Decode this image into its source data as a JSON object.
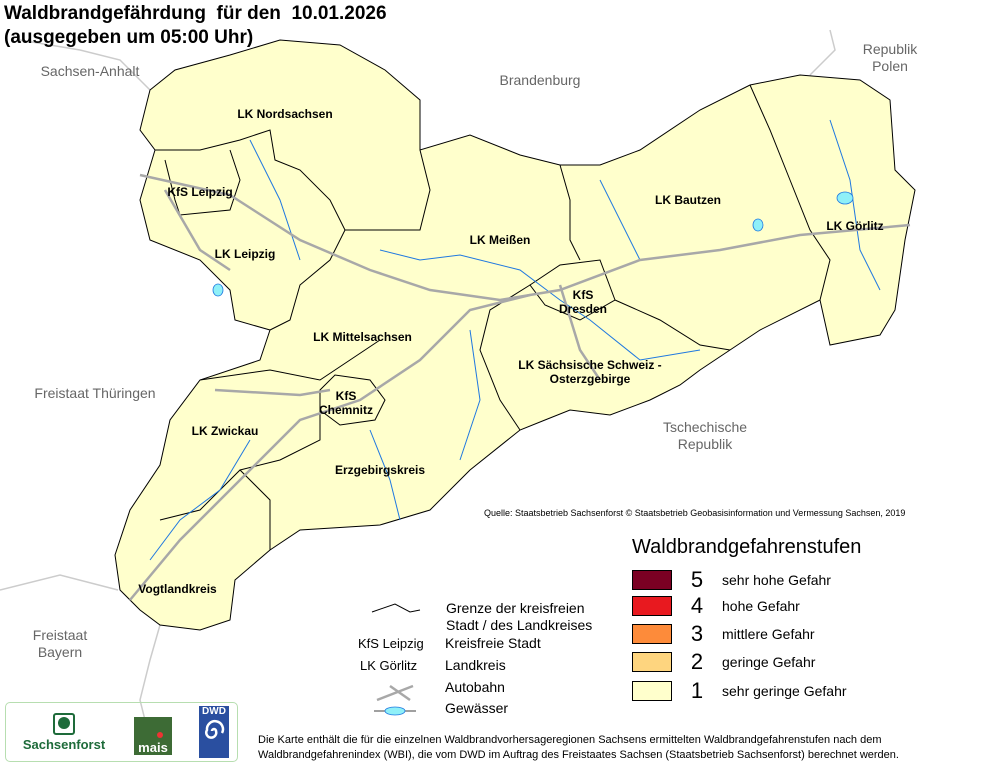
{
  "title": "Waldbrandgefährdung  für den  10.01.2026\n(ausgegeben um 05:00 Uhr)",
  "countries": [
    {
      "name": "Sachsen-Anhalt"
    },
    {
      "name": "Brandenburg"
    },
    {
      "name": "Republik\nPolen"
    },
    {
      "name": "Freistaat Thüringen"
    },
    {
      "name": "Tschechische\nRepublik"
    },
    {
      "name": "Freistaat\nBayern"
    }
  ],
  "districts": [
    {
      "name": "LK Nordsachsen",
      "level": 1
    },
    {
      "name": "KfS Leipzig",
      "level": 1
    },
    {
      "name": "LK Leipzig",
      "level": 1
    },
    {
      "name": "LK Meißen",
      "level": 1
    },
    {
      "name": "LK Bautzen",
      "level": 1
    },
    {
      "name": "LK Görlitz",
      "level": 1
    },
    {
      "name": "KfS\nDresden",
      "level": 1
    },
    {
      "name": "LK Mittelsachsen",
      "level": 1
    },
    {
      "name": "LK Sächsische Schweiz -\nOsterzgebirge",
      "level": 1
    },
    {
      "name": "KfS\nChemnitz",
      "level": 1
    },
    {
      "name": "LK Zwickau",
      "level": 1
    },
    {
      "name": "Erzgebirgskreis",
      "level": 1
    },
    {
      "name": "Vogtlandkreis",
      "level": 1
    }
  ],
  "source": "Quelle: Staatsbetrieb Sachsenforst  © Staatsbetrieb Geobasisinformation und Vermessung Sachsen, 2019",
  "legend": {
    "title": "Waldbrandgefahrenstufen",
    "levels": [
      {
        "level": "5",
        "label": "sehr hohe Gefahr",
        "color": "#7b0023"
      },
      {
        "level": "4",
        "label": "hohe Gefahr",
        "color": "#e8191f"
      },
      {
        "level": "3",
        "label": "mittlere Gefahr",
        "color": "#fd8b3a"
      },
      {
        "level": "2",
        "label": "geringe Gefahr",
        "color": "#fed57f"
      },
      {
        "level": "1",
        "label": "sehr geringe Gefahr",
        "color": "#ffffcc"
      }
    ]
  },
  "symbols": {
    "border": "Grenze der kreisfreien\nStadt / des Landkreises",
    "kfs_example": "KfS Leipzig",
    "kfs": "Kreisfreie Stadt",
    "lk_example": "LK Görlitz",
    "lk": "Landkreis",
    "autobahn": "Autobahn",
    "water": "Gewässer"
  },
  "footnote": "Die Karte enthält die für die einzelnen Waldbrandvorhersageregionen Sachsens ermittelten Waldbrandgefahrenstufen nach dem\nWaldbrandgefahrenindex (WBI), die vom DWD im Auftrag des Freistaates Sachsen (Staatsbetrieb Sachsenforst) berechnet werden.",
  "logos": {
    "sachsenforst": "Sachsenforst",
    "mais": "mais",
    "dwd": "DWD"
  },
  "colors": {
    "river": "#1f78e0",
    "autobahn": "#a8a8a8",
    "border": "#000000",
    "neighbor_border": "#c8c8c8",
    "water": "#8ff0f8"
  }
}
